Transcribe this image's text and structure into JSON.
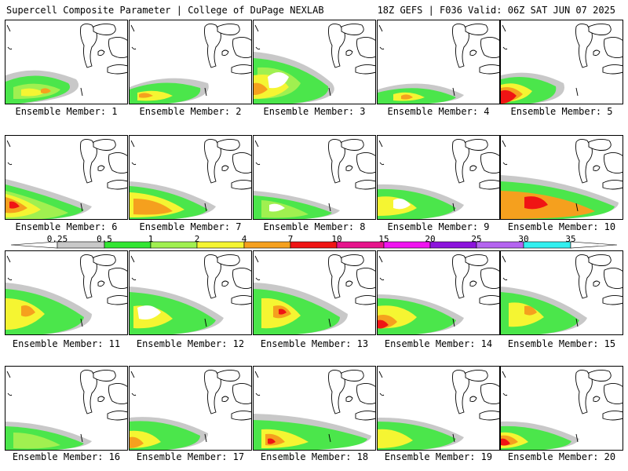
{
  "header": {
    "title": "Supercell Composite Parameter | College of DuPage NEXLAB",
    "run_info": "18Z GEFS | F036 Valid: 06Z SAT JUN 07 2025"
  },
  "member_label_prefix": "Ensemble Member:",
  "members": [
    {
      "label": "Ensemble Member: 1"
    },
    {
      "label": "Ensemble Member: 2"
    },
    {
      "label": "Ensemble Member: 3"
    },
    {
      "label": "Ensemble Member: 4"
    },
    {
      "label": "Ensemble Member: 5"
    },
    {
      "label": "Ensemble Member: 6"
    },
    {
      "label": "Ensemble Member: 7"
    },
    {
      "label": "Ensemble Member: 8"
    },
    {
      "label": "Ensemble Member: 9"
    },
    {
      "label": "Ensemble Member: 10"
    },
    {
      "label": "Ensemble Member: 11"
    },
    {
      "label": "Ensemble Member: 12"
    },
    {
      "label": "Ensemble Member: 13"
    },
    {
      "label": "Ensemble Member: 14"
    },
    {
      "label": "Ensemble Member: 15"
    },
    {
      "label": "Ensemble Member: 16"
    },
    {
      "label": "Ensemble Member: 17"
    },
    {
      "label": "Ensemble Member: 18"
    },
    {
      "label": "Ensemble Member: 19"
    },
    {
      "label": "Ensemble Member: 20"
    }
  ],
  "colorbar": {
    "ticks": [
      "0.25",
      "0.5",
      "1",
      "2",
      "4",
      "7",
      "10",
      "15",
      "20",
      "25",
      "30",
      "35"
    ],
    "colors": [
      "#ffffff",
      "#c8c8c8",
      "#32e632",
      "#a0f050",
      "#f5f532",
      "#f5a01e",
      "#f01414",
      "#e6148c",
      "#f014f0",
      "#8c14dc",
      "#b464f0",
      "#32f0f0"
    ]
  },
  "map_colors": {
    "light_gray": "#c8c8c8",
    "green": "#4be64b",
    "light_green": "#a0f050",
    "yellow": "#f5f532",
    "orange": "#f5a01e",
    "red": "#f01414"
  }
}
